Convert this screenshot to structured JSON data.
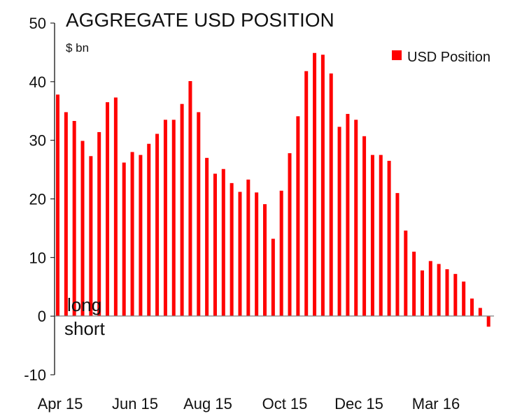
{
  "chart_data": {
    "type": "bar",
    "title": "AGGREGATE USD POSITION",
    "unit_label": "$ bn",
    "ylim": [
      -10,
      50
    ],
    "yticks": [
      50,
      40,
      30,
      20,
      10,
      0,
      -10
    ],
    "x_tick_labels": [
      "Apr 15",
      "Jun 15",
      "Aug 15",
      "Oct 15",
      "Dec 15",
      "Mar 16"
    ],
    "grid": false,
    "legend_position": "top-right",
    "series": [
      {
        "name": "USD Position",
        "color": "#ff0000",
        "values": [
          37.8,
          34.8,
          33.3,
          29.9,
          27.3,
          31.4,
          36.5,
          37.3,
          26.2,
          28.0,
          27.5,
          29.4,
          31.1,
          33.5,
          33.5,
          36.2,
          40.1,
          34.8,
          27.0,
          24.3,
          25.1,
          22.7,
          21.2,
          23.3,
          21.1,
          19.1,
          13.2,
          21.4,
          27.8,
          34.1,
          41.8,
          44.9,
          44.6,
          41.4,
          32.3,
          34.5,
          33.5,
          30.7,
          27.5,
          27.5,
          26.5,
          21.0,
          14.6,
          11.0,
          7.8,
          9.4,
          8.9,
          8.0,
          7.2,
          5.9,
          3.0,
          1.4,
          -1.8
        ]
      }
    ],
    "annotations": [
      "long",
      "short"
    ]
  }
}
